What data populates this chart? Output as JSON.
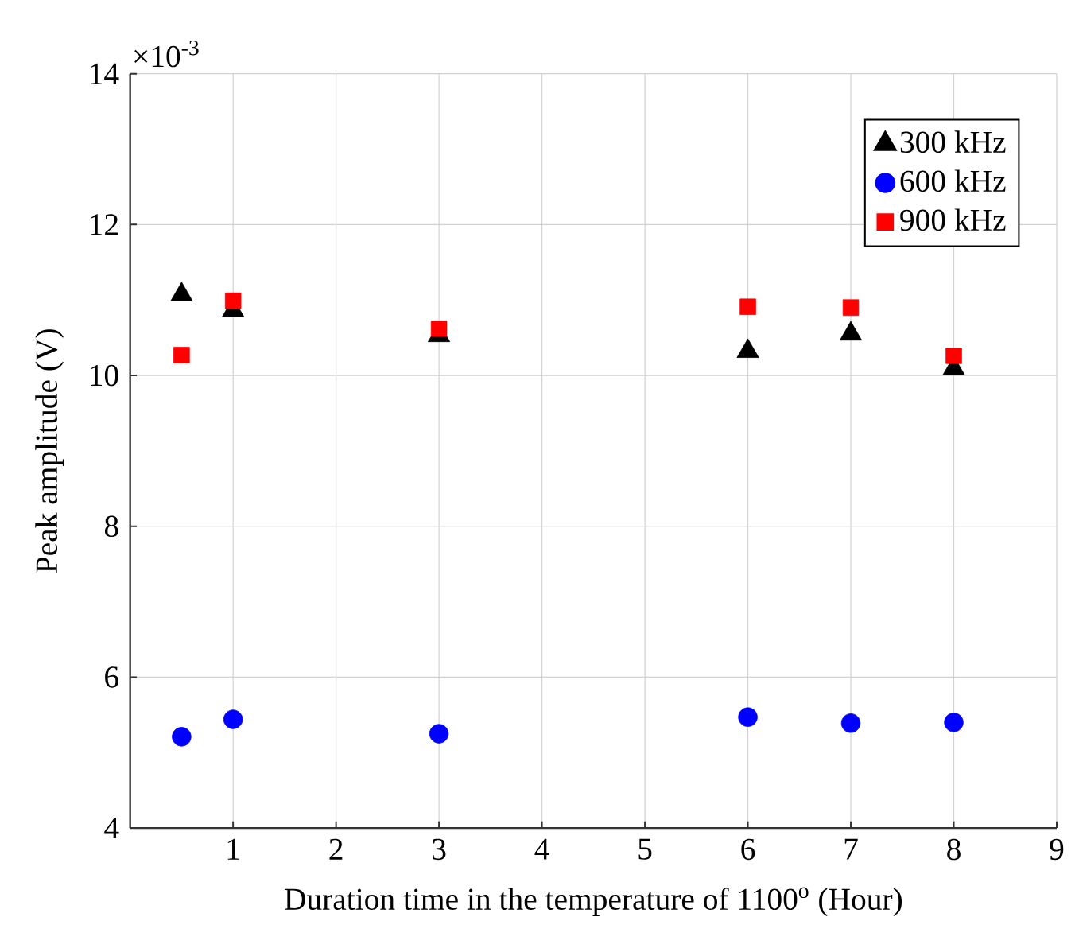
{
  "chart_data": {
    "type": "scatter",
    "xlabel": "Duration time in the temperature of 1100$^{o}$ (Hour)",
    "ylabel": "Peak amplitude (V)",
    "annotations": [
      "×10$^{-3}$"
    ],
    "x": [
      0.5,
      1,
      3,
      6,
      7,
      8
    ],
    "series": [
      {
        "name": "300 kHz",
        "color": "#000000",
        "marker": "triangle",
        "values": [
          11.07,
          10.86,
          10.53,
          10.32,
          10.55,
          10.09
        ]
      },
      {
        "name": "600 kHz",
        "color": "#0000ff",
        "marker": "circle",
        "values": [
          5.21,
          5.44,
          5.25,
          5.47,
          5.39,
          5.4
        ]
      },
      {
        "name": "900 kHz",
        "color": "#ff0000",
        "marker": "square",
        "values": [
          10.27,
          10.99,
          10.62,
          10.91,
          10.9,
          10.26
        ]
      }
    ],
    "xlim": [
      0,
      9
    ],
    "xticks": [
      1,
      2,
      3,
      4,
      5,
      6,
      7,
      8,
      9
    ],
    "ylim": [
      4,
      14
    ],
    "yticks": [
      4,
      6,
      8,
      10,
      12,
      14
    ],
    "grid": true,
    "legend": "top right"
  }
}
